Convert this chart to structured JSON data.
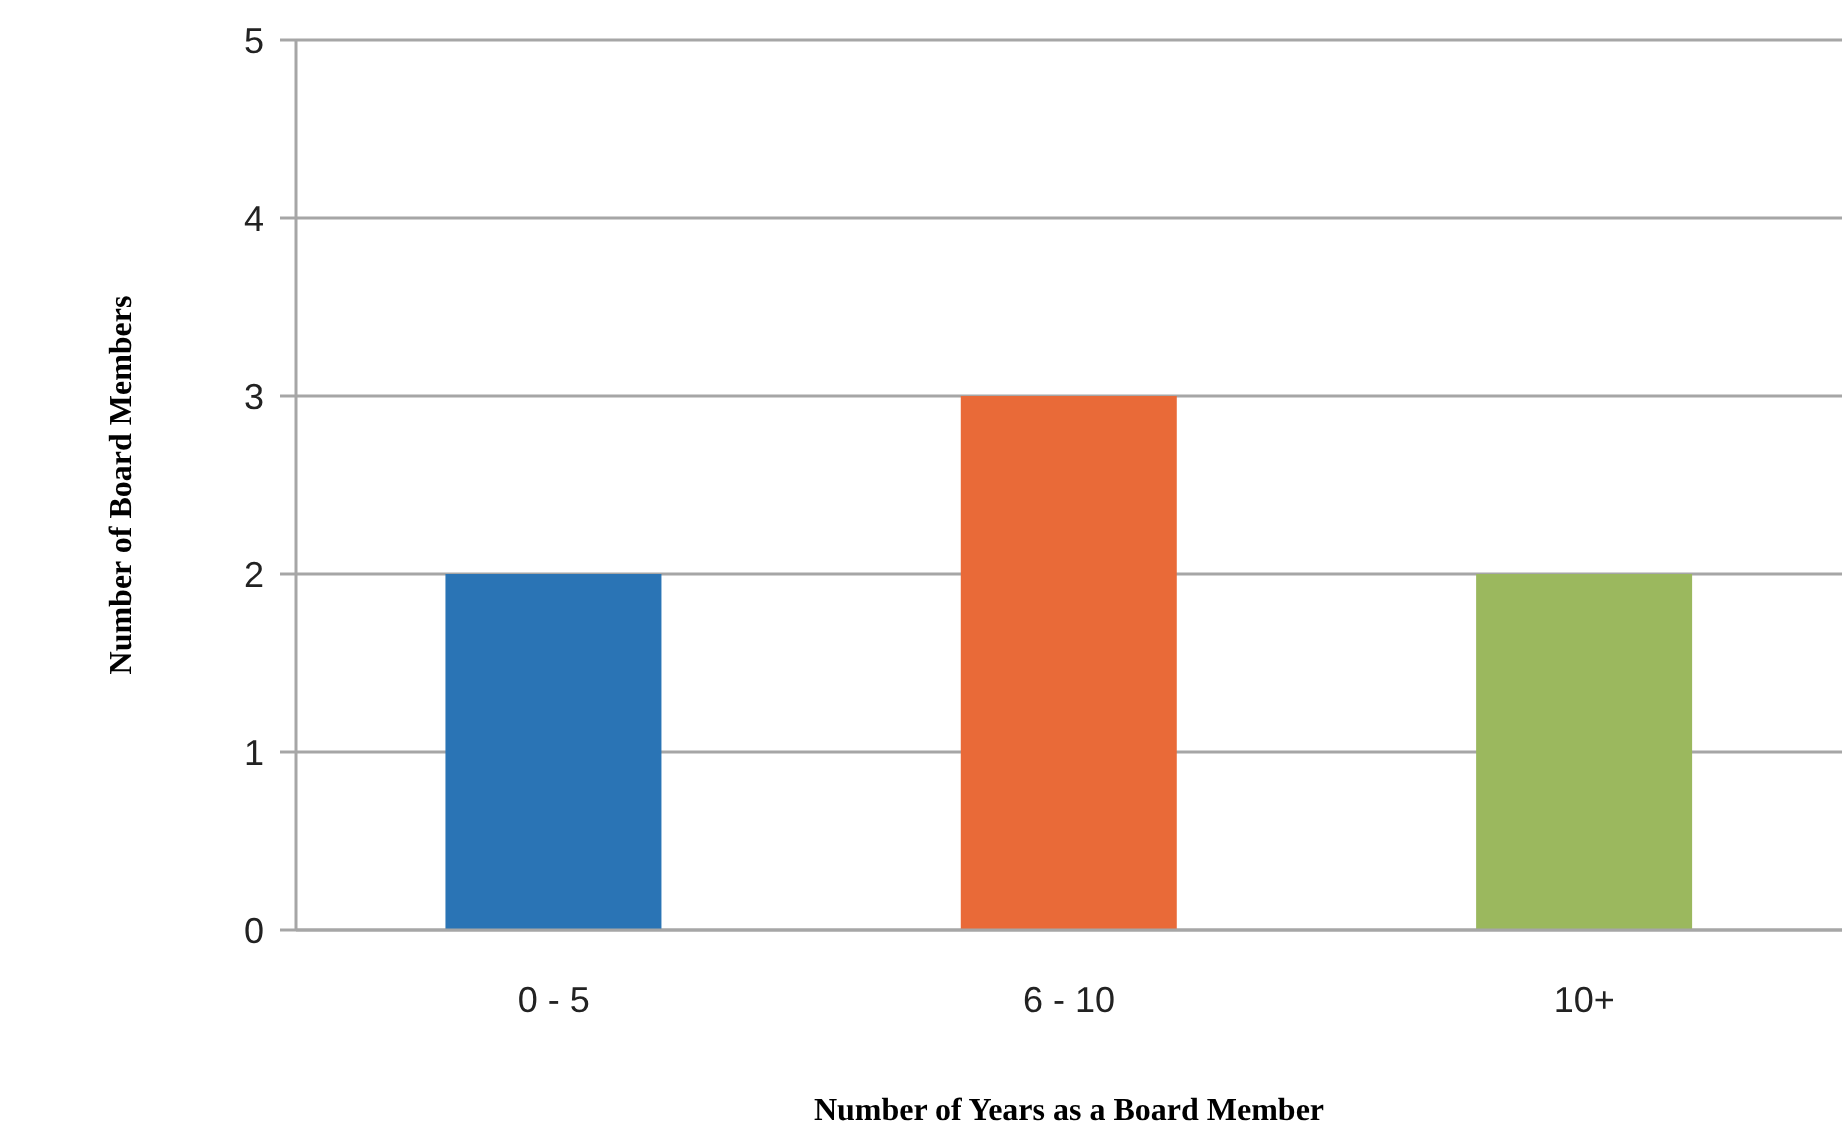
{
  "chart_data": {
    "type": "bar",
    "xlabel": "Number of Years as a Board Member",
    "ylabel": "Number of Board Members",
    "categories": [
      "0 - 5",
      "6 - 10",
      "10+"
    ],
    "values": [
      2,
      3,
      2
    ],
    "colors": [
      "#2a74b5",
      "#e96a38",
      "#9bb85e"
    ],
    "ylim": [
      0,
      5
    ],
    "yticks": [
      0,
      1,
      2,
      3,
      4,
      5
    ],
    "grid": "y",
    "legend": false
  }
}
